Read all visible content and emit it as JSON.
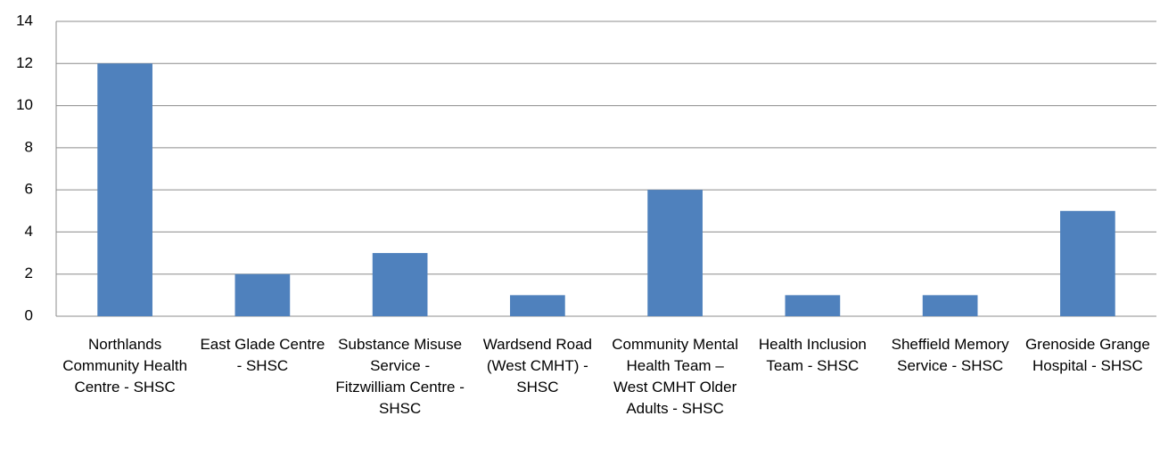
{
  "chart_data": {
    "type": "bar",
    "categories": [
      "Northlands Community Health Centre - SHSC",
      "East Glade Centre - SHSC",
      "Substance Misuse Service - Fitzwilliam Centre - SHSC",
      "Wardsend Road (West CMHT) - SHSC",
      "Community Mental Health Team – West CMHT Older Adults - SHSC",
      "Health Inclusion Team - SHSC",
      "Sheffield Memory Service - SHSC",
      "Grenoside Grange Hospital - SHSC"
    ],
    "values": [
      12,
      2,
      3,
      1,
      6,
      1,
      1,
      5
    ],
    "color": "#4f81bd",
    "ylim": [
      0,
      14
    ],
    "yticks": [
      0,
      2,
      4,
      6,
      8,
      10,
      12,
      14
    ],
    "grid": true
  }
}
